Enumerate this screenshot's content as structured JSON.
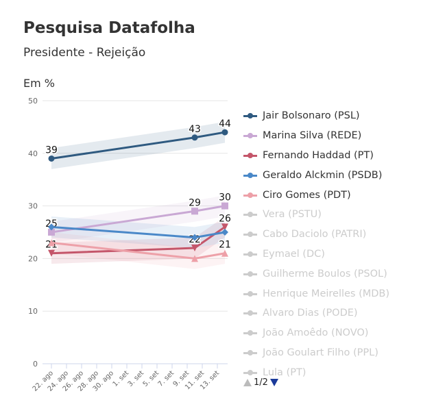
{
  "header": {
    "title": "Pesquisa Datafolha",
    "subtitle": "Presidente - Rejeição",
    "unit": "Em %"
  },
  "chart_data": {
    "type": "line",
    "title": "Pesquisa Datafolha",
    "subtitle": "Presidente - Rejeição",
    "ylabel": "Em %",
    "ylim": [
      0,
      50
    ],
    "yticks": [
      0,
      10,
      20,
      30,
      40,
      50
    ],
    "xtick_labels": [
      "22. ago",
      "24. ago",
      "26. ago",
      "28. ago",
      "30. ago",
      "1. set",
      "3. set",
      "5. set",
      "7. set",
      "9. set",
      "11. set",
      "13. set"
    ],
    "x_days_since_22ago": [
      0,
      19,
      23
    ],
    "x": [
      "22. ago",
      "10. set",
      "14. set"
    ],
    "grid": true,
    "legend_placement": "right",
    "series": [
      {
        "name": "Jair Bolsonaro (PSL)",
        "color": "#2f5a80",
        "marker": "circle",
        "values": [
          39,
          43,
          44
        ],
        "labels": [
          "39",
          "43",
          "44"
        ]
      },
      {
        "name": "Marina Silva (REDE)",
        "color": "#c9a8d4",
        "marker": "square",
        "values": [
          25,
          29,
          30
        ],
        "labels": [
          "25",
          "29",
          "30"
        ]
      },
      {
        "name": "Fernando Haddad (PT)",
        "color": "#c4566a",
        "marker": "triangle-down",
        "values": [
          21,
          22,
          26
        ],
        "labels": [
          "21",
          "22",
          "26"
        ]
      },
      {
        "name": "Geraldo Alckmin (PSDB)",
        "color": "#4a88c8",
        "marker": "diamond",
        "values": [
          26,
          24,
          25
        ],
        "labels": [
          "",
          "",
          ""
        ]
      },
      {
        "name": "Ciro Gomes (PDT)",
        "color": "#eda0a8",
        "marker": "triangle",
        "values": [
          23,
          20,
          21
        ],
        "labels": [
          "",
          "",
          "21"
        ]
      }
    ],
    "hidden_series": [
      "Vera (PSTU)",
      "Cabo Daciolo (PATRI)",
      "Eymael (DC)",
      "Guilherme Boulos (PSOL)",
      "Henrique Meirelles (MDB)",
      "Alvaro Dias (PODE)",
      "João Amoêdo (NOVO)",
      "João Goulart Filho (PPL)",
      "Lula (PT)"
    ]
  },
  "legend_nav": {
    "page": "1/2"
  }
}
